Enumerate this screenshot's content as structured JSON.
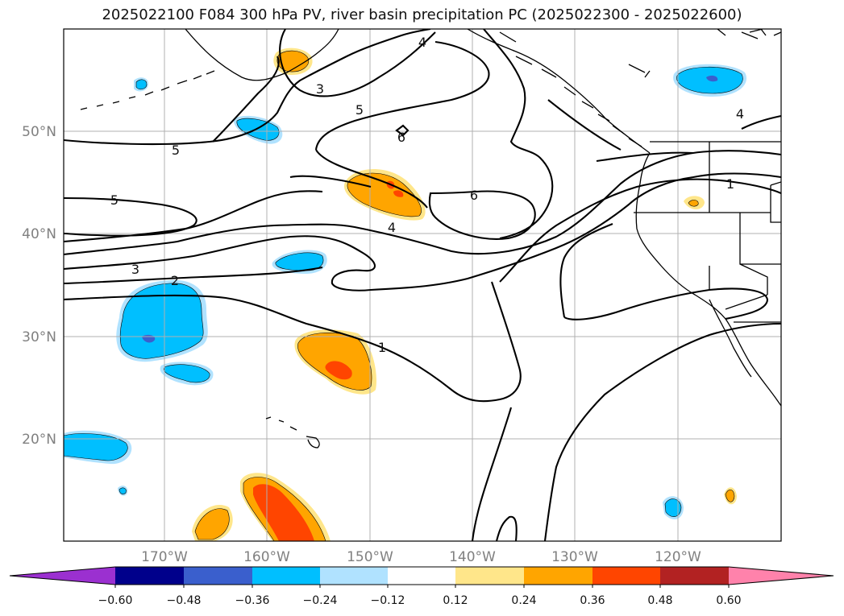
{
  "title": "2025022100 F084 300 hPa PV, river basin precipitation PC (2025022300 - 2025022600)",
  "map": {
    "lon_labels": [
      "170°W",
      "160°W",
      "150°W",
      "140°W",
      "130°W",
      "120°W"
    ],
    "lat_labels": [
      "50°N",
      "40°N",
      "30°N",
      "20°N"
    ],
    "pv_contour_labels": [
      "4",
      "3",
      "5",
      "6",
      "5",
      "5",
      "3",
      "2",
      "4",
      "6",
      "1",
      "4",
      "1"
    ],
    "colors": {
      "purple": "#9b30d0",
      "navy": "#00008b",
      "blue": "#3a5fcd",
      "cyan": "#00bfff",
      "lightblue": "#b0e2ff",
      "yellow": "#ffe68a",
      "orange": "#ffa500",
      "redorange": "#ff4500",
      "firebrick": "#b22222",
      "pink": "#ff82ab"
    }
  },
  "colorbar": {
    "ticks": [
      "−0.60",
      "−0.48",
      "−0.36",
      "−0.24",
      "−0.12",
      "0.12",
      "0.24",
      "0.36",
      "0.48",
      "0.60"
    ],
    "colors": [
      "#9b30d0",
      "#00008b",
      "#3a5fcd",
      "#00bfff",
      "#b0e2ff",
      "#ffffff",
      "#ffe68a",
      "#ffa500",
      "#ff4500",
      "#b22222",
      "#ff82ab",
      "#ff82ab"
    ]
  }
}
